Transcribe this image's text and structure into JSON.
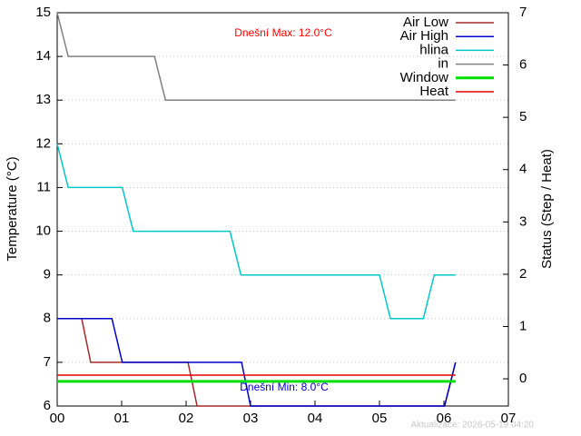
{
  "chart_data": {
    "type": "line",
    "y_label": "Temperature (°C)",
    "y2_label": "Status (Step / Heat)",
    "annotations": [
      {
        "text": "Dnešní Max: 12.0°C",
        "color": "#ff0000"
      },
      {
        "text": "Dnešní Min: 8.0°C",
        "color": "#0000cc"
      }
    ],
    "footer": "Aktualizace: 2026-05-19 04:20",
    "xlim": [
      0,
      7
    ],
    "xticks": [
      {
        "value": 0,
        "label": "00"
      },
      {
        "value": 1,
        "label": "01"
      },
      {
        "value": 2,
        "label": "02"
      },
      {
        "value": 3,
        "label": "03"
      },
      {
        "value": 4,
        "label": "04"
      },
      {
        "value": 5,
        "label": "05"
      },
      {
        "value": 6,
        "label": "06"
      },
      {
        "value": 7,
        "label": "07"
      }
    ],
    "ylim": [
      6,
      15
    ],
    "yticks": [
      6,
      7,
      8,
      9,
      10,
      11,
      12,
      13,
      14,
      15
    ],
    "y2lim": [
      -0.52,
      7
    ],
    "y2ticks": [
      0,
      1,
      2,
      3,
      4,
      5,
      6,
      7
    ],
    "grid": true,
    "series": [
      {
        "name": "Air Low",
        "color": "#a52a2a",
        "x": [
          0,
          0.38,
          0.52,
          2.03,
          2.17,
          6.01,
          6.18
        ],
        "values": [
          8,
          8,
          7,
          7,
          6,
          6,
          7
        ]
      },
      {
        "name": "Air High",
        "color": "#0000cc",
        "x": [
          0,
          0.85,
          1.01,
          2.86,
          3.0,
          6.01,
          6.18
        ],
        "values": [
          8,
          8,
          7,
          7,
          6,
          6,
          7
        ]
      },
      {
        "name": "hlina",
        "color": "#00c8c8",
        "x": [
          0,
          0.17,
          1.01,
          1.18,
          2.68,
          2.85,
          5.0,
          5.17,
          5.68,
          5.85,
          6.18
        ],
        "values": [
          12,
          11,
          11,
          10,
          10,
          9,
          9,
          8,
          8,
          9,
          9
        ]
      },
      {
        "name": "in",
        "color": "#808080",
        "x": [
          0,
          0.17,
          1.51,
          1.68,
          6.18
        ],
        "values": [
          15,
          14,
          14,
          13,
          13
        ]
      },
      {
        "name": "Window",
        "color": "#00e000",
        "axis": "y2",
        "width": 3,
        "x": [
          0,
          6.18
        ],
        "values": [
          -0.05,
          -0.05
        ]
      },
      {
        "name": "Heat",
        "color": "#e00000",
        "axis": "y2",
        "width": 1.5,
        "x": [
          0,
          6.18
        ],
        "values": [
          0.07,
          0.07
        ]
      }
    ]
  }
}
